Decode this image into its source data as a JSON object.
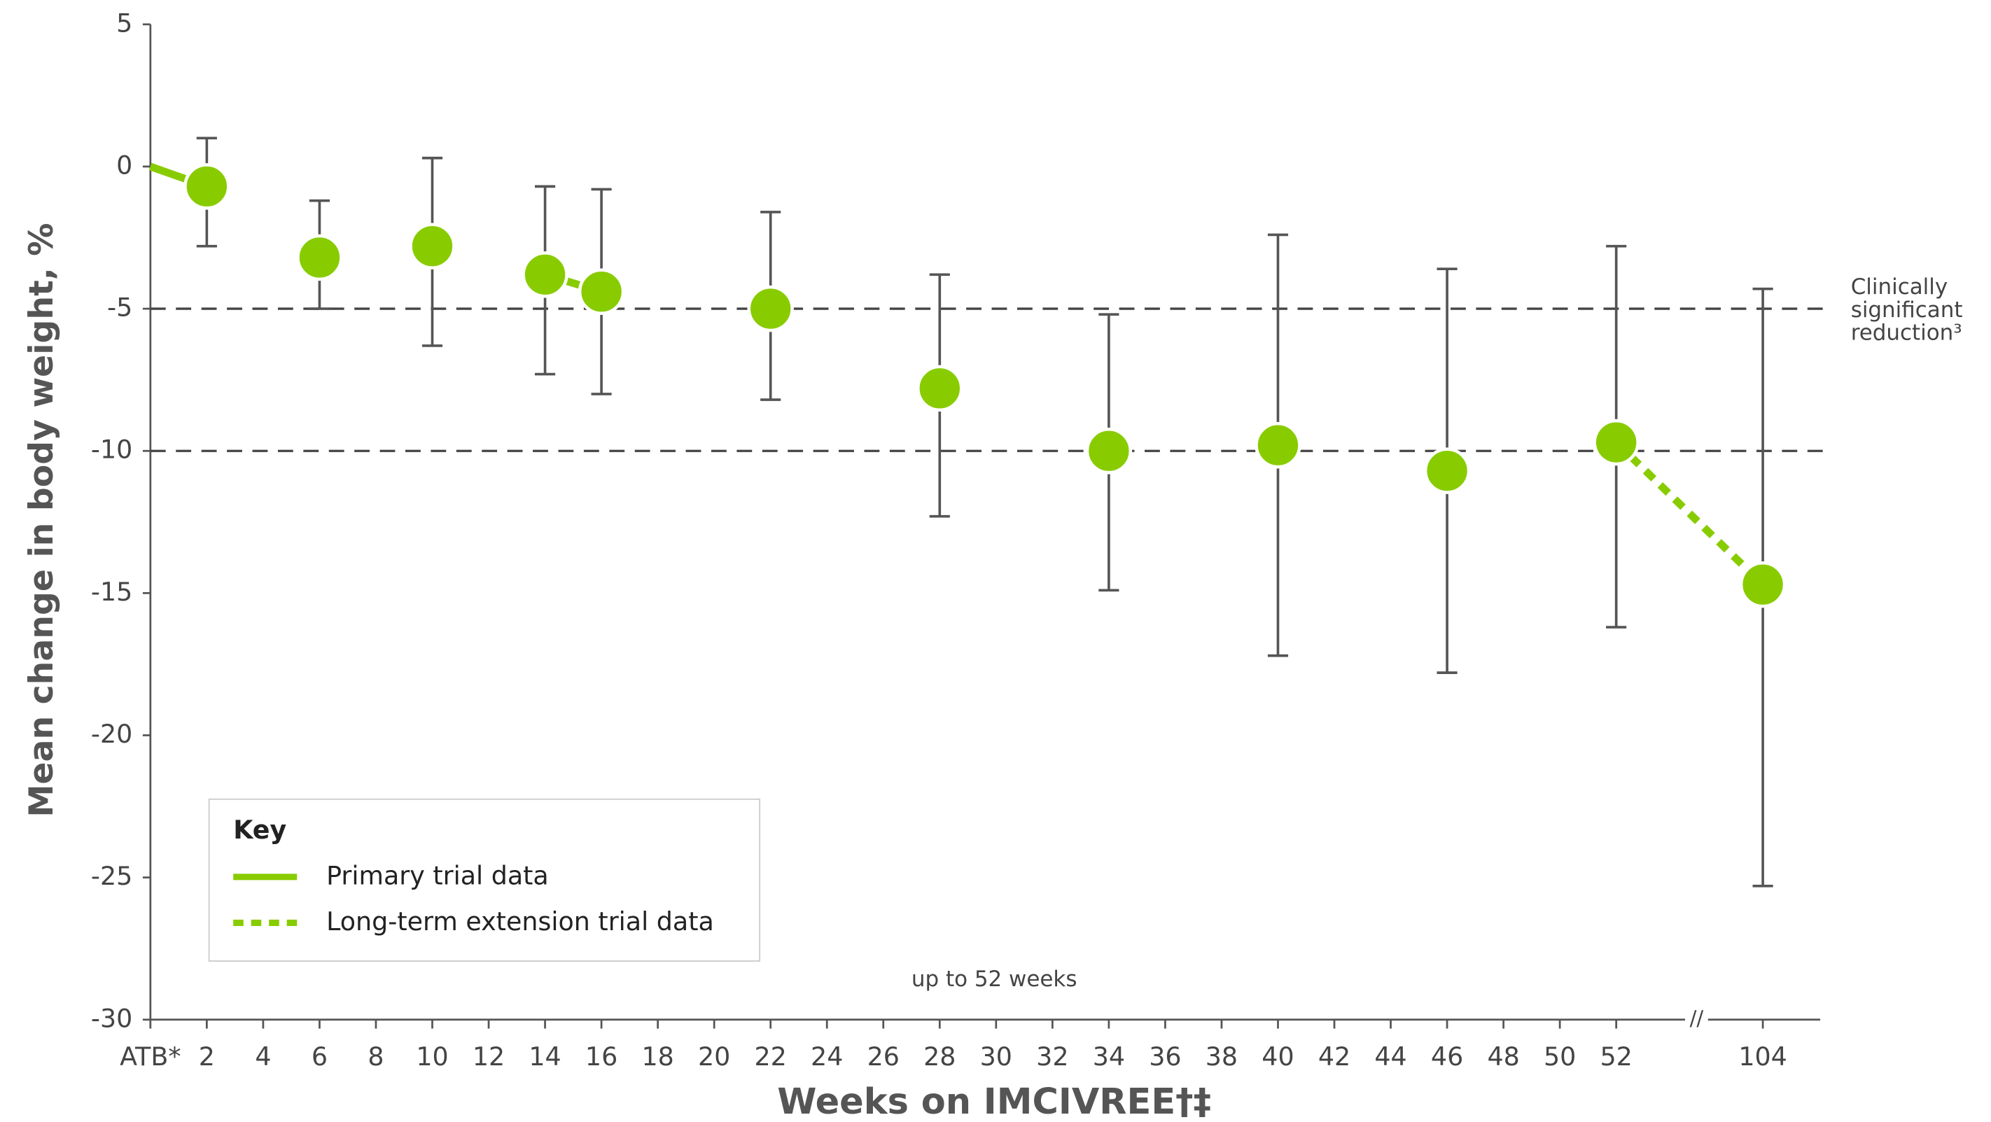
{
  "chart_data": {
    "type": "line",
    "y_label": "Mean change in body weight, %",
    "x_label": "Weeks on IMCIVREE†‡",
    "note": "up to 52 weeks",
    "legend_title": "Key",
    "categories": [
      "ATB*",
      "2",
      "4",
      "6",
      "8",
      "10",
      "12",
      "14",
      "16",
      "18",
      "20",
      "22",
      "24",
      "26",
      "28",
      "30",
      "32",
      "34",
      "36",
      "38",
      "40",
      "42",
      "44",
      "46",
      "48",
      "50",
      "52",
      "104"
    ],
    "series": [
      {
        "name": "Primary trial data",
        "color": "#88cc00",
        "dashed": false,
        "values": [
          0,
          -0.7,
          null,
          -3.2,
          null,
          -2.8,
          null,
          -3.8,
          -4.4,
          null,
          null,
          -5.0,
          null,
          null,
          -7.8,
          null,
          null,
          -10.0,
          null,
          null,
          -9.8,
          null,
          null,
          -10.7,
          null,
          null,
          -9.7,
          null
        ]
      },
      {
        "name": "Long-term extension trial data",
        "color": "#88cc00",
        "dashed": true,
        "values": [
          null,
          null,
          null,
          null,
          null,
          null,
          null,
          null,
          null,
          null,
          null,
          null,
          null,
          null,
          null,
          null,
          null,
          null,
          null,
          null,
          null,
          null,
          null,
          null,
          null,
          null,
          -9.7,
          -14.7
        ]
      }
    ],
    "error_upper": [
      null,
      1.0,
      null,
      -1.2,
      null,
      0.3,
      null,
      -0.7,
      -0.8,
      null,
      null,
      -1.6,
      null,
      null,
      -3.8,
      null,
      null,
      -5.2,
      null,
      null,
      -2.4,
      null,
      null,
      -3.6,
      null,
      null,
      -2.8,
      -4.3
    ],
    "error_lower": [
      null,
      -2.8,
      null,
      -5.0,
      null,
      -6.3,
      null,
      -7.3,
      -8.0,
      null,
      null,
      -8.2,
      null,
      null,
      -12.3,
      null,
      null,
      -14.9,
      null,
      null,
      -17.2,
      null,
      null,
      -17.8,
      null,
      null,
      -16.2,
      -25.3
    ],
    "error_color": "#555555",
    "reference_lines": [
      -5,
      -10
    ],
    "reference_label": [
      "Clinically",
      "significant",
      "reduction³"
    ],
    "ylim": [
      -30,
      5
    ],
    "yticks": [
      5,
      0,
      -5,
      -10,
      -15,
      -20,
      -25,
      -30
    ]
  }
}
